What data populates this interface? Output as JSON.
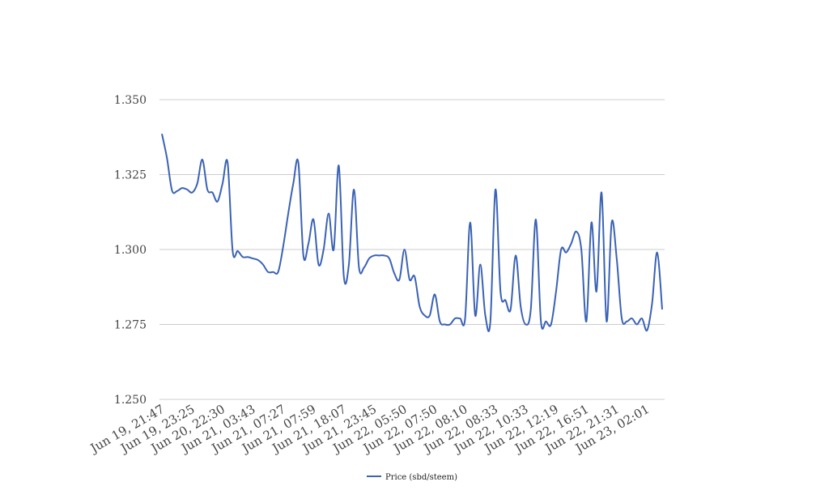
{
  "chart_data": {
    "type": "line",
    "categories": [
      "Jun 19, 21:47",
      null,
      null,
      null,
      null,
      null,
      "Jun 19, 23:25",
      null,
      null,
      null,
      null,
      null,
      "Jun 20, 22:30",
      null,
      null,
      null,
      null,
      null,
      "Jun 21, 03:43",
      null,
      null,
      null,
      null,
      null,
      "Jun 21, 07:27",
      null,
      null,
      null,
      null,
      null,
      "Jun 21, 07:59",
      null,
      null,
      null,
      null,
      null,
      "Jun 21, 18:07",
      null,
      null,
      null,
      null,
      null,
      "Jun 21, 23:45",
      null,
      null,
      null,
      null,
      null,
      "Jun 22, 05:50",
      null,
      null,
      null,
      null,
      null,
      "Jun 22, 07:50",
      null,
      null,
      null,
      null,
      null,
      "Jun 22, 08:10",
      null,
      null,
      null,
      null,
      null,
      "Jun 22, 08:33",
      null,
      null,
      null,
      null,
      null,
      "Jun 22, 10:33",
      null,
      null,
      null,
      null,
      null,
      "Jun 22, 12:19",
      null,
      null,
      null,
      null,
      null,
      "Jun 22, 16:51",
      null,
      null,
      null,
      null,
      null,
      "Jun 22, 21:31",
      null,
      null,
      null,
      null,
      null,
      "Jun 23, 02:01",
      null,
      null,
      null
    ],
    "series": [
      {
        "name": "Price (sbd/steem)",
        "color": "#3a62b5",
        "values": [
          1.3386,
          1.3305,
          1.3197,
          1.3195,
          1.3205,
          1.32,
          1.319,
          1.322,
          1.33,
          1.32,
          1.319,
          1.316,
          1.322,
          1.329,
          1.2995,
          1.2995,
          1.2975,
          1.2975,
          1.297,
          1.2965,
          1.295,
          1.2925,
          1.2925,
          1.2925,
          1.301,
          1.312,
          1.322,
          1.329,
          1.298,
          1.302,
          1.31,
          1.295,
          1.3,
          1.312,
          1.3,
          1.328,
          1.291,
          1.295,
          1.32,
          1.294,
          1.294,
          1.297,
          1.298,
          1.298,
          1.298,
          1.297,
          1.292,
          1.29,
          1.3,
          1.29,
          1.291,
          1.281,
          1.278,
          1.278,
          1.285,
          1.276,
          1.275,
          1.275,
          1.277,
          1.277,
          1.277,
          1.309,
          1.278,
          1.295,
          1.278,
          1.276,
          1.32,
          1.286,
          1.283,
          1.28,
          1.298,
          1.281,
          1.275,
          1.28,
          1.31,
          1.276,
          1.276,
          1.275,
          1.286,
          1.3,
          1.299,
          1.302,
          1.306,
          1.3,
          1.276,
          1.309,
          1.286,
          1.319,
          1.276,
          1.309,
          1.297,
          1.277,
          1.276,
          1.277,
          1.275,
          1.277,
          1.273,
          1.282,
          1.299,
          1.28
        ]
      }
    ],
    "ylim": [
      1.25,
      1.35
    ],
    "yticks": [
      {
        "value": 1.25,
        "label": "1.250"
      },
      {
        "value": 1.275,
        "label": "1.275"
      },
      {
        "value": 1.3,
        "label": "1.300"
      },
      {
        "value": 1.325,
        "label": "1.325"
      },
      {
        "value": 1.35,
        "label": "1.350"
      }
    ],
    "grid": true,
    "legend": "bottom"
  }
}
